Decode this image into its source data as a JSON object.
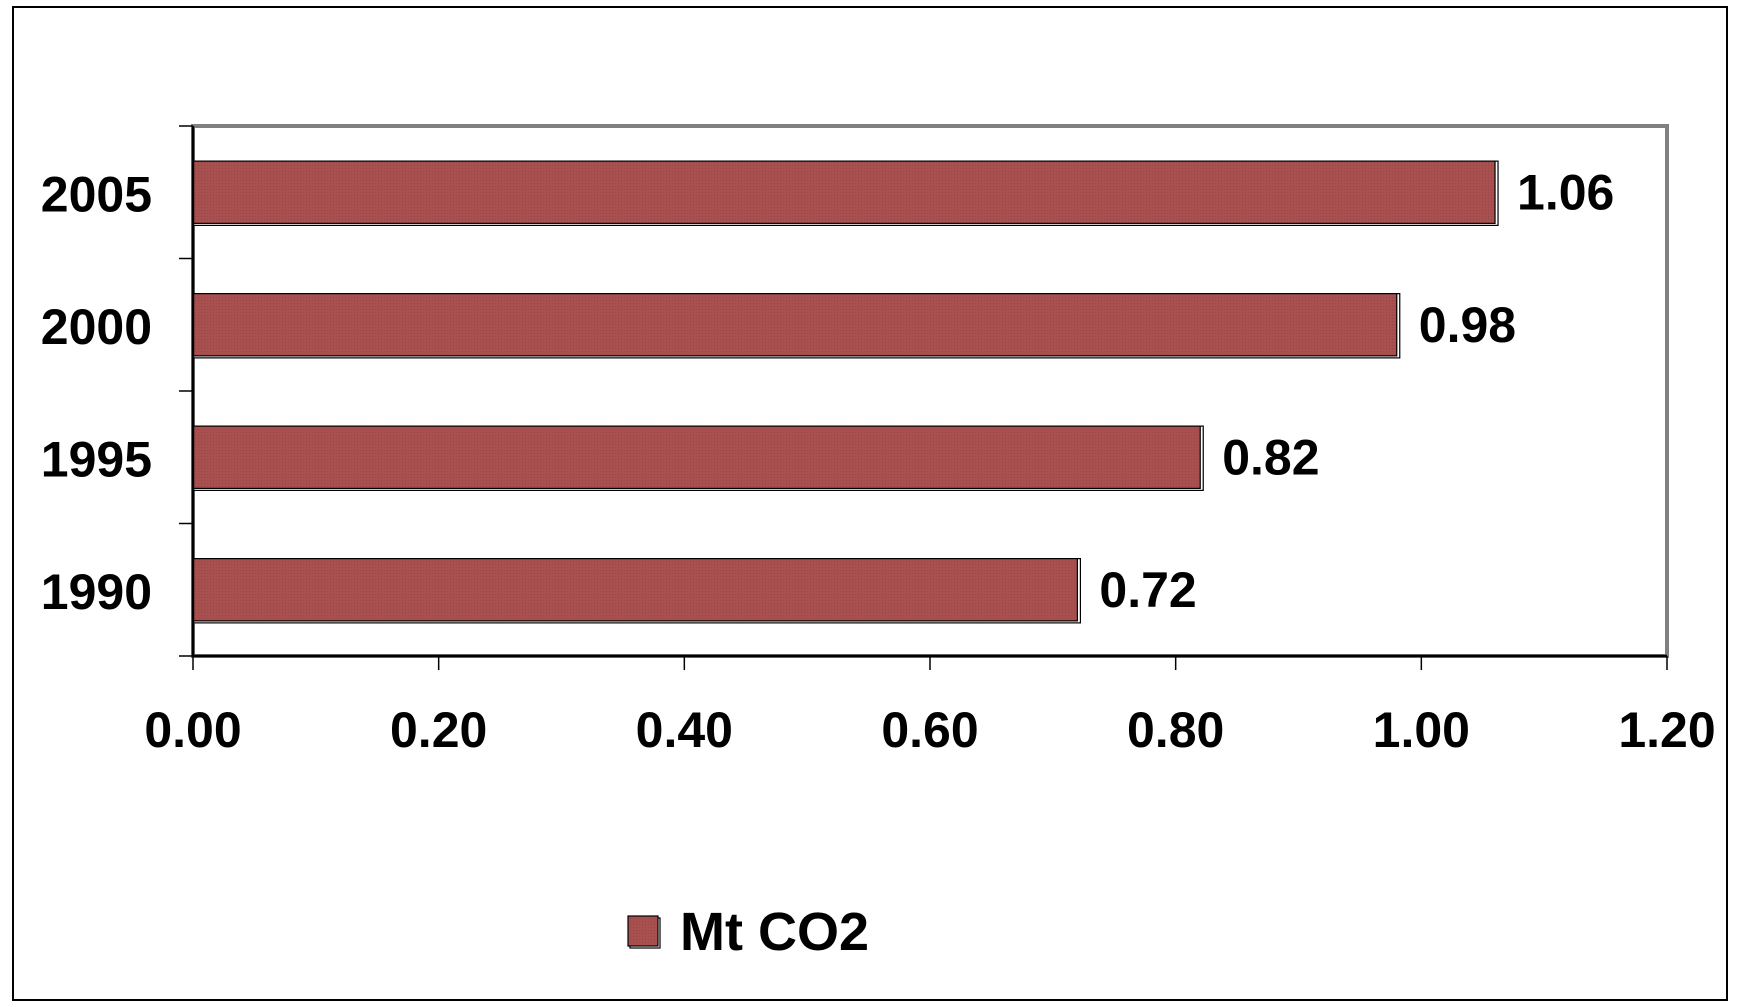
{
  "chart_data": {
    "type": "bar",
    "orientation": "horizontal",
    "categories": [
      "1990",
      "1995",
      "2000",
      "2005"
    ],
    "series": [
      {
        "name": "Mt CO2",
        "values": [
          0.72,
          0.82,
          0.98,
          1.06
        ],
        "data_labels": [
          "0.72",
          "0.82",
          "0.98",
          "1.06"
        ],
        "color": "#A84F4F"
      }
    ],
    "xlim": [
      0,
      1.2
    ],
    "x_ticks": [
      0,
      0.2,
      0.4,
      0.6,
      0.8,
      1.0,
      1.2
    ],
    "x_tick_labels": [
      "0.00",
      "0.20",
      "0.40",
      "0.60",
      "0.80",
      "1.00",
      "1.20"
    ],
    "grid": false,
    "legend_placement": "bottom-center",
    "plot_border_color": "#808080"
  }
}
